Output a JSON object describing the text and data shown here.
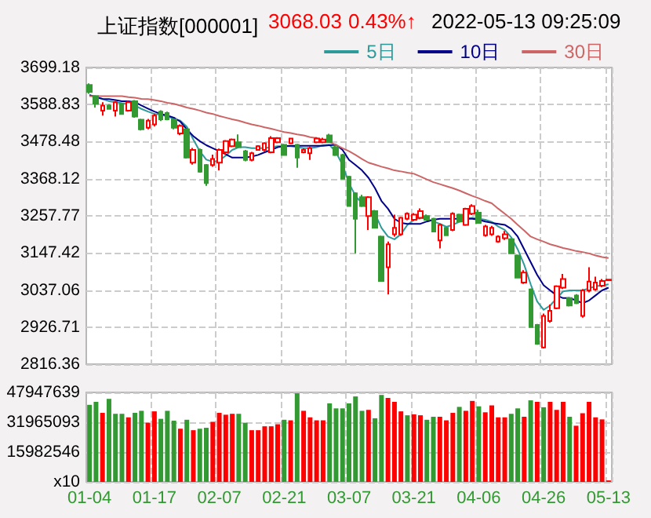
{
  "chart_data": [
    {
      "type": "candlestick",
      "title": "上证指数[000001]",
      "annotations": [
        "3068.03",
        "0.43%↑",
        "2022-05-13 09:25:09"
      ],
      "categories": [
        null,
        null,
        null,
        null,
        null,
        null,
        null,
        null,
        null,
        null,
        null,
        null,
        null,
        null,
        null,
        null,
        null,
        null,
        null,
        null,
        null,
        null,
        null,
        null,
        null,
        null,
        null,
        null,
        null,
        null,
        null,
        null,
        null,
        null,
        null,
        null,
        null,
        null,
        null,
        null,
        null,
        null,
        null,
        null,
        null,
        null,
        null,
        null,
        null,
        null,
        null,
        null,
        null,
        null,
        null,
        null,
        null,
        null,
        null,
        null,
        null,
        null,
        null,
        null,
        null,
        null,
        null,
        null,
        null,
        null,
        null,
        null,
        null,
        null,
        null,
        null,
        null,
        null,
        null,
        null,
        null
      ],
      "series": [
        {
          "type": "candlestick",
          "ohlc": [
            [
              3647,
              3652,
              3621,
              3626
            ],
            [
              3614,
              3617,
              3580,
              3591
            ],
            [
              3571,
              3596,
              3556,
              3586
            ],
            [
              3586,
              3590,
              3575,
              3576
            ],
            [
              3571,
              3600,
              3553,
              3596
            ],
            [
              3591,
              3594,
              3560,
              3561
            ],
            [
              3571,
              3600,
              3568,
              3596
            ],
            [
              3599,
              3602,
              3550,
              3553
            ],
            [
              3544,
              3547,
              3512,
              3515
            ],
            [
              3520,
              3546,
              3515,
              3541
            ],
            [
              3530,
              3562,
              3524,
              3556
            ],
            [
              3568,
              3572,
              3540,
              3545
            ],
            [
              3564,
              3568,
              3542,
              3545
            ],
            [
              3545,
              3548,
              3515,
              3520
            ],
            [
              3503,
              3530,
              3498,
              3526
            ],
            [
              3515,
              3518,
              3428,
              3431
            ],
            [
              3416,
              3460,
              3410,
              3454
            ],
            [
              3454,
              3458,
              3386,
              3389
            ],
            [
              3409,
              3412,
              3347,
              3355
            ],
            [
              3409,
              3440,
              3404,
              3427
            ],
            [
              3416,
              3458,
              3393,
              3454
            ],
            [
              3447,
              3483,
              3440,
              3480
            ],
            [
              3465,
              3488,
              3462,
              3485
            ],
            [
              3477,
              3500,
              3460,
              3462
            ],
            [
              3450,
              3454,
              3420,
              3424
            ],
            [
              3424,
              3448,
              3420,
              3444
            ],
            [
              3454,
              3468,
              3452,
              3465
            ],
            [
              3454,
              3477,
              3450,
              3474
            ],
            [
              3447,
              3495,
              3444,
              3489
            ],
            [
              3477,
              3492,
              3474,
              3489
            ],
            [
              3469,
              3472,
              3438,
              3439
            ],
            [
              3474,
              3490,
              3471,
              3488
            ],
            [
              3469,
              3472,
              3401,
              3431
            ],
            [
              3447,
              3458,
              3444,
              3454
            ],
            [
              3444,
              3464,
              3424,
              3459
            ],
            [
              3477,
              3492,
              3474,
              3488
            ],
            [
              3477,
              3490,
              3474,
              3485
            ],
            [
              3497,
              3502,
              3477,
              3477
            ],
            [
              3462,
              3466,
              3436,
              3439
            ],
            [
              3439,
              3442,
              3366,
              3368
            ],
            [
              3374,
              3377,
              3286,
              3287
            ],
            [
              3325,
              3328,
              3146,
              3249
            ],
            [
              3313,
              3320,
              3284,
              3287
            ],
            [
              3257,
              3316,
              3216,
              3313
            ],
            [
              3272,
              3275,
              3220,
              3222
            ],
            [
              3196,
              3199,
              3062,
              3064
            ],
            [
              3105,
              3181,
              3024,
              3173
            ],
            [
              3203,
              3261,
              3196,
              3222
            ],
            [
              3203,
              3255,
              3198,
              3252
            ],
            [
              3249,
              3268,
              3245,
              3264
            ],
            [
              3246,
              3266,
              3242,
              3261
            ],
            [
              3252,
              3280,
              3248,
              3272
            ],
            [
              3257,
              3262,
              3245,
              3246
            ],
            [
              3249,
              3252,
              3210,
              3211
            ],
            [
              3185,
              3235,
              3161,
              3231
            ],
            [
              3222,
              3225,
              3198,
              3200
            ],
            [
              3216,
              3268,
              3212,
              3264
            ],
            [
              3261,
              3264,
              3240,
              3241
            ],
            [
              3231,
              3282,
              3228,
              3279
            ],
            [
              3264,
              3292,
              3260,
              3287
            ],
            [
              3267,
              3276,
              3235,
              3237
            ],
            [
              3200,
              3231,
              3196,
              3226
            ],
            [
              3203,
              3228,
              3198,
              3222
            ],
            [
              3181,
              3200,
              3178,
              3196
            ],
            [
              3191,
              3213,
              3186,
              3203
            ],
            [
              3188,
              3191,
              3144,
              3146
            ],
            [
              3140,
              3143,
              3072,
              3074
            ],
            [
              3059,
              3096,
              3055,
              3089
            ],
            [
              3039,
              3042,
              2925,
              2927
            ],
            [
              2933,
              2936,
              2874,
              2877
            ],
            [
              2866,
              2967,
              2863,
              2960
            ],
            [
              2945,
              2994,
              2940,
              2975
            ],
            [
              2983,
              3051,
              2980,
              3048
            ],
            [
              3044,
              3085,
              3040,
              3070
            ],
            [
              3013,
              3016,
              2988,
              2991
            ],
            [
              3021,
              3025,
              2995,
              2998
            ],
            [
              2960,
              3040,
              2955,
              3036
            ],
            [
              3036,
              3105,
              3030,
              3062
            ],
            [
              3039,
              3077,
              3035,
              3059
            ],
            [
              3050,
              3070,
              3045,
              3064
            ],
            [
              3066,
              3068,
              3066,
              3068
            ]
          ],
          "colors": [
            "#339933",
            "#339933",
            "#ff0000",
            "#339933",
            "#ff0000",
            "#339933",
            "#ff0000",
            "#339933",
            "#339933",
            "#ff0000",
            "#ff0000",
            "#339933",
            "#339933",
            "#339933",
            "#ff0000",
            "#339933",
            "#ff0000",
            "#339933",
            "#339933",
            "#ff0000",
            "#ff0000",
            "#ff0000",
            "#ff0000",
            "#339933",
            "#339933",
            "#ff0000",
            "#ff0000",
            "#ff0000",
            "#ff0000",
            "#ff0000",
            "#339933",
            "#ff0000",
            "#339933",
            "#ff0000",
            "#ff0000",
            "#ff0000",
            "#ff0000",
            "#339933",
            "#339933",
            "#339933",
            "#339933",
            "#339933",
            "#339933",
            "#ff0000",
            "#339933",
            "#339933",
            "#ff0000",
            "#ff0000",
            "#ff0000",
            "#ff0000",
            "#ff0000",
            "#ff0000",
            "#339933",
            "#339933",
            "#ff0000",
            "#339933",
            "#ff0000",
            "#339933",
            "#ff0000",
            "#ff0000",
            "#339933",
            "#ff0000",
            "#ff0000",
            "#ff0000",
            "#ff0000",
            "#339933",
            "#339933",
            "#ff0000",
            "#339933",
            "#339933",
            "#ff0000",
            "#ff0000",
            "#ff0000",
            "#ff0000",
            "#339933",
            "#339933",
            "#ff0000",
            "#ff0000",
            "#ff0000",
            "#ff0000",
            "#ff0000"
          ]
        },
        {
          "type": "line",
          "name": "5日",
          "color": "#2e9a9a",
          "values": [
            3617,
            3611,
            3605,
            3599,
            3596,
            3593,
            3591,
            3586,
            3576,
            3568,
            3561,
            3559,
            3553,
            3547,
            3541,
            3523,
            3485,
            3450,
            3425,
            3419,
            3422,
            3437,
            3454,
            3462,
            3462,
            3459,
            3459,
            3459,
            3462,
            3465,
            3465,
            3465,
            3462,
            3459,
            3459,
            3462,
            3468,
            3469,
            3447,
            3409,
            3355,
            3317,
            3295,
            3279,
            3264,
            3222,
            3196,
            3188,
            3203,
            3231,
            3246,
            3252,
            3249,
            3241,
            3234,
            3225,
            3231,
            3240,
            3249,
            3252,
            3249,
            3246,
            3240,
            3226,
            3216,
            3194,
            3158,
            3112,
            3054,
            3003,
            2978,
            2991,
            3012,
            3033,
            3036,
            3036,
            3036,
            3042,
            3048,
            3051,
            3054
          ]
        },
        {
          "type": "line",
          "name": "10日",
          "color": "#00008b",
          "values": [
            3617,
            3611,
            3606,
            3605,
            3602,
            3599,
            3599,
            3596,
            3586,
            3577,
            3568,
            3561,
            3556,
            3550,
            3538,
            3515,
            3495,
            3480,
            3468,
            3459,
            3450,
            3441,
            3431,
            3431,
            3431,
            3434,
            3439,
            3447,
            3454,
            3462,
            3465,
            3466,
            3466,
            3466,
            3466,
            3466,
            3466,
            3468,
            3469,
            3454,
            3424,
            3409,
            3393,
            3371,
            3340,
            3302,
            3279,
            3249,
            3237,
            3234,
            3234,
            3234,
            3241,
            3246,
            3249,
            3249,
            3249,
            3249,
            3249,
            3249,
            3246,
            3241,
            3237,
            3234,
            3231,
            3219,
            3196,
            3158,
            3120,
            3082,
            3051,
            3036,
            3021,
            3013,
            3013,
            3006,
            2998,
            3006,
            3021,
            3036,
            3044
          ]
        },
        {
          "type": "line",
          "name": "30日",
          "color": "#cc6666",
          "values": [
            3614,
            3614,
            3614,
            3614,
            3614,
            3614,
            3611,
            3609,
            3606,
            3605,
            3602,
            3599,
            3594,
            3591,
            3586,
            3580,
            3576,
            3571,
            3565,
            3561,
            3555,
            3550,
            3545,
            3541,
            3535,
            3530,
            3526,
            3521,
            3517,
            3512,
            3507,
            3504,
            3500,
            3497,
            3492,
            3489,
            3483,
            3477,
            3469,
            3459,
            3450,
            3439,
            3427,
            3416,
            3410,
            3404,
            3399,
            3393,
            3390,
            3386,
            3383,
            3375,
            3366,
            3358,
            3352,
            3346,
            3340,
            3333,
            3325,
            3317,
            3310,
            3302,
            3295,
            3279,
            3264,
            3249,
            3231,
            3214,
            3196,
            3188,
            3181,
            3173,
            3168,
            3162,
            3158,
            3153,
            3150,
            3146,
            3140,
            3135,
            3132
          ]
        }
      ],
      "ylim": [
        2816.36,
        3699.18
      ],
      "yticks": [
        2816.36,
        2926.71,
        3037.06,
        3147.42,
        3257.77,
        3368.12,
        3478.48,
        3588.83,
        3699.18
      ],
      "grid": true,
      "legend": "top right",
      "tick_labels": "y"
    },
    {
      "type": "bar",
      "categories": [
        "01-04",
        null,
        null,
        null,
        null,
        null,
        null,
        null,
        null,
        null,
        "01-17",
        null,
        null,
        null,
        null,
        null,
        null,
        null,
        null,
        null,
        "02-07",
        null,
        null,
        null,
        null,
        null,
        null,
        null,
        null,
        null,
        "02-21",
        null,
        null,
        null,
        null,
        null,
        null,
        null,
        null,
        null,
        "03-07",
        null,
        null,
        null,
        null,
        null,
        null,
        null,
        null,
        null,
        "03-21",
        null,
        null,
        null,
        null,
        null,
        null,
        null,
        null,
        null,
        "04-06",
        null,
        null,
        null,
        null,
        null,
        null,
        null,
        null,
        null,
        "04-26",
        null,
        null,
        null,
        null,
        null,
        null,
        null,
        null,
        null,
        "05-13"
      ],
      "values": [
        41300000,
        42900000,
        37000000,
        44500000,
        36500000,
        36500000,
        34600000,
        37000000,
        38100000,
        31700000,
        37800000,
        33800000,
        38100000,
        32800000,
        28500000,
        33300000,
        27700000,
        28500000,
        29000000,
        32200000,
        37000000,
        36000000,
        36500000,
        36500000,
        31700000,
        27700000,
        27700000,
        29800000,
        29800000,
        30900000,
        33300000,
        33000000,
        47500000,
        38100000,
        34600000,
        33000000,
        33000000,
        42100000,
        39400000,
        39400000,
        42100000,
        45800000,
        38100000,
        38600000,
        34100000,
        46600000,
        45000000,
        42900000,
        37800000,
        35700000,
        36200000,
        35700000,
        33300000,
        34900000,
        34900000,
        33000000,
        37000000,
        40200000,
        38100000,
        43400000,
        40500000,
        37300000,
        41000000,
        34600000,
        34600000,
        36500000,
        39400000,
        34900000,
        43700000,
        42900000,
        40000000,
        42900000,
        38600000,
        42900000,
        34900000,
        30100000,
        36800000,
        42900000,
        34600000,
        33500000,
        800000
      ],
      "colors": [
        "#339933",
        "#339933",
        "#ff0000",
        "#339933",
        "#339933",
        "#339933",
        "#ff0000",
        "#339933",
        "#339933",
        "#ff0000",
        "#ff0000",
        "#339933",
        "#339933",
        "#339933",
        "#ff0000",
        "#339933",
        "#ff0000",
        "#339933",
        "#339933",
        "#ff0000",
        "#ff0000",
        "#ff0000",
        "#ff0000",
        "#339933",
        "#339933",
        "#ff0000",
        "#ff0000",
        "#ff0000",
        "#ff0000",
        "#ff0000",
        "#339933",
        "#ff0000",
        "#339933",
        "#ff0000",
        "#ff0000",
        "#ff0000",
        "#ff0000",
        "#339933",
        "#339933",
        "#339933",
        "#339933",
        "#339933",
        "#339933",
        "#ff0000",
        "#339933",
        "#339933",
        "#ff0000",
        "#ff0000",
        "#ff0000",
        "#339933",
        "#ff0000",
        "#ff0000",
        "#339933",
        "#339933",
        "#ff0000",
        "#ff0000",
        "#ff0000",
        "#339933",
        "#ff0000",
        "#ff0000",
        "#339933",
        "#ff0000",
        "#ff0000",
        "#ff0000",
        "#ff0000",
        "#339933",
        "#339933",
        "#ff0000",
        "#339933",
        "#ff0000",
        "#339933",
        "#ff0000",
        "#ff0000",
        "#ff0000",
        "#339933",
        "#ff0000",
        "#ff0000",
        "#ff0000",
        "#ff0000",
        "#ff0000",
        "#ff0000"
      ],
      "ylim": [
        0,
        47947639
      ],
      "yticks": [
        {
          "value": 0,
          "label": "x10"
        },
        15982546,
        31965093,
        47947639
      ],
      "grid": true
    }
  ]
}
